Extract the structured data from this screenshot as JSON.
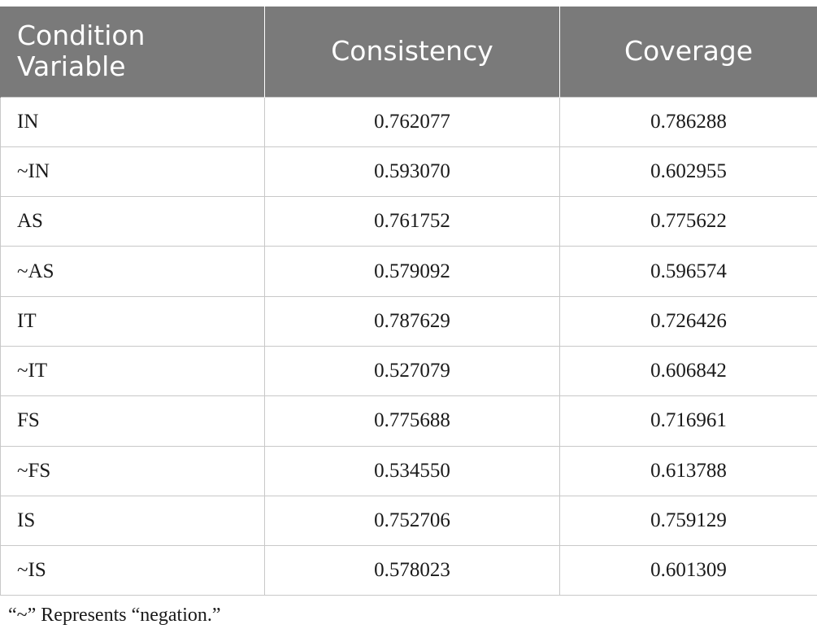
{
  "table": {
    "headers": [
      "Condition Variable",
      "Consistency",
      "Coverage"
    ],
    "rows": [
      [
        "IN",
        "0.762077",
        "0.786288"
      ],
      [
        "~IN",
        "0.593070",
        "0.602955"
      ],
      [
        "AS",
        "0.761752",
        "0.775622"
      ],
      [
        "~AS",
        "0.579092",
        "0.596574"
      ],
      [
        "IT",
        "0.787629",
        "0.726426"
      ],
      [
        "~IT",
        "0.527079",
        "0.606842"
      ],
      [
        "FS",
        "0.775688",
        "0.716961"
      ],
      [
        "~FS",
        "0.534550",
        "0.613788"
      ],
      [
        "IS",
        "0.752706",
        "0.759129"
      ],
      [
        "~IS",
        "0.578023",
        "0.601309"
      ]
    ]
  },
  "footnote": "“~” Represents “negation.”",
  "colors": {
    "header_bg": "#7a7a7a",
    "header_text": "#ffffff",
    "cell_border": "#c8c8c8",
    "body_text": "#1a1a1a"
  }
}
